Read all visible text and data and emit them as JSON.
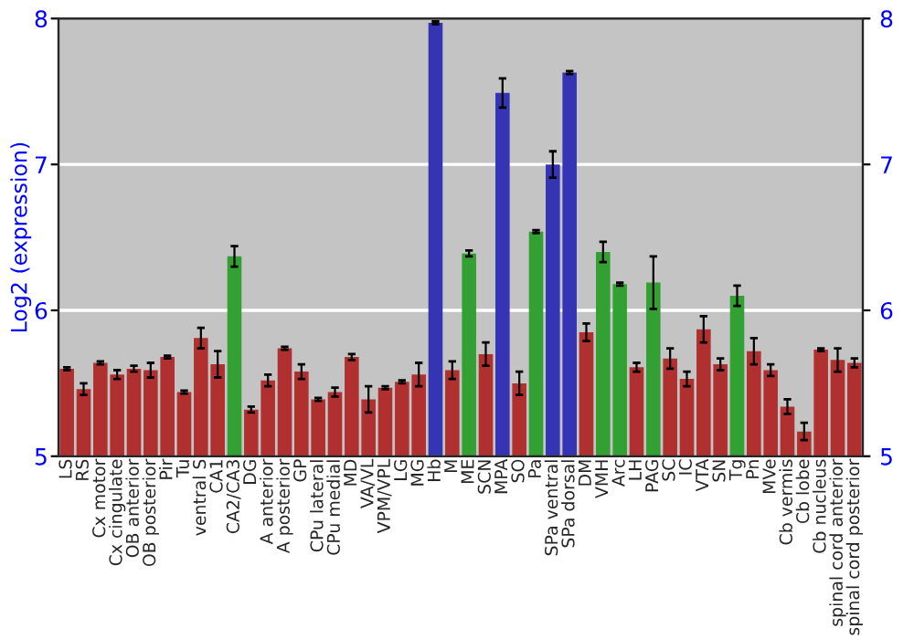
{
  "chart_data": {
    "type": "bar",
    "ylabel": "Log2 (expression)",
    "categories": [
      "LS",
      "RS",
      "Cx motor",
      "Cx cingulate",
      "OB anterior",
      "OB posterior",
      "Pir",
      "Tu",
      "ventral S",
      "CA1",
      "CA2/CA3",
      "DG",
      "A anterior",
      "A posterior",
      "GP",
      "CPu lateral",
      "CPu medial",
      "MD",
      "VA/VL",
      "VPM/VPL",
      "LG",
      "MG",
      "Hb",
      "M",
      "ME",
      "SCN",
      "MPA",
      "SO",
      "Pa",
      "SPa ventral",
      "SPa dorsal",
      "DM",
      "VMH",
      "Arc",
      "LH",
      "PAG",
      "SC",
      "IC",
      "VTA",
      "SN",
      "Tg",
      "Pn",
      "MVe",
      "Cb vermis",
      "Cb lobe",
      "Cb nucleus",
      "spinal cord anterior",
      "spinal cord posterior"
    ],
    "values": [
      5.6,
      5.46,
      5.64,
      5.56,
      5.6,
      5.59,
      5.68,
      5.44,
      5.81,
      5.63,
      6.37,
      5.32,
      5.52,
      5.74,
      5.58,
      5.39,
      5.44,
      5.68,
      5.39,
      5.47,
      5.51,
      5.56,
      7.97,
      5.59,
      6.39,
      5.7,
      7.49,
      5.5,
      6.54,
      7.0,
      7.63,
      5.85,
      6.4,
      6.18,
      5.61,
      6.19,
      5.67,
      5.53,
      5.87,
      5.63,
      6.1,
      5.72,
      5.59,
      5.34,
      5.17,
      5.73,
      5.66,
      5.64
    ],
    "errors": [
      0.01,
      0.04,
      0.01,
      0.03,
      0.02,
      0.05,
      0.01,
      0.01,
      0.07,
      0.09,
      0.07,
      0.02,
      0.04,
      0.01,
      0.05,
      0.01,
      0.03,
      0.02,
      0.09,
      0.01,
      0.01,
      0.08,
      0.01,
      0.06,
      0.02,
      0.08,
      0.1,
      0.08,
      0.01,
      0.09,
      0.01,
      0.06,
      0.07,
      0.01,
      0.03,
      0.18,
      0.07,
      0.05,
      0.09,
      0.04,
      0.07,
      0.09,
      0.04,
      0.05,
      0.06,
      0.01,
      0.08,
      0.03
    ],
    "colors": [
      "#b03030",
      "#b03030",
      "#b03030",
      "#b03030",
      "#b03030",
      "#b03030",
      "#b03030",
      "#b03030",
      "#b03030",
      "#b03030",
      "#33a033",
      "#b03030",
      "#b03030",
      "#b03030",
      "#b03030",
      "#b03030",
      "#b03030",
      "#b03030",
      "#b03030",
      "#b03030",
      "#b03030",
      "#b03030",
      "#3434b4",
      "#b03030",
      "#33a033",
      "#b03030",
      "#3434b4",
      "#b03030",
      "#33a033",
      "#3434b4",
      "#3434b4",
      "#b03030",
      "#33a033",
      "#33a033",
      "#b03030",
      "#33a033",
      "#b03030",
      "#b03030",
      "#b03030",
      "#b03030",
      "#33a033",
      "#b03030",
      "#b03030",
      "#b03030",
      "#b03030",
      "#b03030",
      "#b03030",
      "#b03030"
    ],
    "ylim": [
      5,
      8
    ],
    "yticks": [
      5,
      6,
      7,
      8
    ],
    "y2lim": [
      5,
      8
    ],
    "y2ticks": [
      5,
      6,
      7,
      8
    ],
    "grid": "y",
    "legend": false
  }
}
